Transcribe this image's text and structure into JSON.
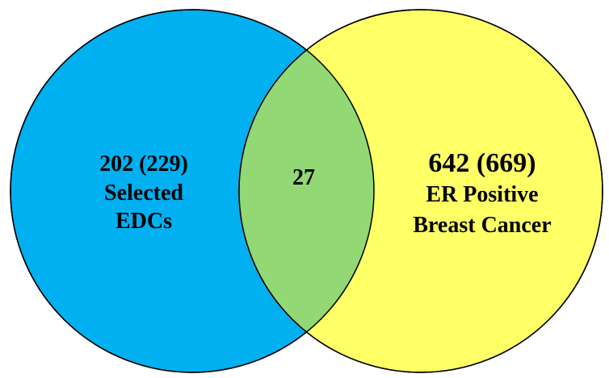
{
  "venn": {
    "left": {
      "count": "202 (229)",
      "label_line1": "Selected",
      "label_line2": "EDCs",
      "color": "#00B0F0"
    },
    "intersection": {
      "count": "27",
      "color": "#92D875"
    },
    "right": {
      "count": "642 (669)",
      "label_line1": "ER Positive",
      "label_line2": "Breast Cancer",
      "color": "#FFFF66"
    },
    "outline_color": "#000000"
  }
}
